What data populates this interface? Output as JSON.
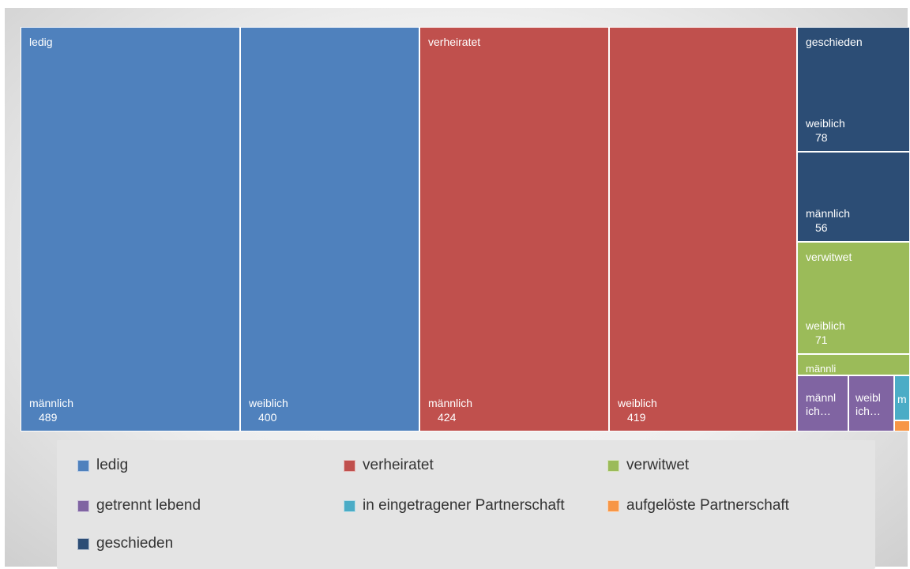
{
  "colors": {
    "ledig": "#4f81bd",
    "verheiratet": "#c0504d",
    "verwitwet": "#9bbb59",
    "getrennt_lebend": "#8064a2",
    "in_eingetragener_partnerschaft": "#4bacc6",
    "aufgeloeste_partnerschaft": "#f79646",
    "geschieden": "#2c4d75"
  },
  "chart_data": {
    "type": "treemap",
    "groups": [
      {
        "name": "ledig",
        "color": "#4f81bd",
        "children": [
          {
            "name": "männlich",
            "value": 489
          },
          {
            "name": "weiblich",
            "value": 400
          }
        ]
      },
      {
        "name": "verheiratet",
        "color": "#c0504d",
        "children": [
          {
            "name": "männlich",
            "value": 424
          },
          {
            "name": "weiblich",
            "value": 419
          }
        ]
      },
      {
        "name": "geschieden",
        "color": "#2c4d75",
        "children": [
          {
            "name": "weiblich",
            "value": 78
          },
          {
            "name": "männlich",
            "value": 56
          }
        ]
      },
      {
        "name": "verwitwet",
        "color": "#9bbb59",
        "children": [
          {
            "name": "weiblich",
            "value": 71
          },
          {
            "name": "männlich",
            "value": null
          }
        ]
      },
      {
        "name": "getrennt lebend",
        "color": "#8064a2",
        "children": [
          {
            "name": "männlich",
            "value": null
          },
          {
            "name": "weiblich",
            "value": null
          }
        ]
      },
      {
        "name": "in eingetragener Partnerschaft",
        "color": "#4bacc6",
        "children": [
          {
            "name": "männlich",
            "value": null
          }
        ]
      },
      {
        "name": "aufgelöste Partnerschaft",
        "color": "#f79646",
        "children": [
          {
            "name": "",
            "value": null
          }
        ]
      }
    ]
  },
  "tiles": {
    "ledig_m": {
      "group": "ledig",
      "sub": "männlich",
      "value": "489"
    },
    "ledig_w": {
      "sub": "weiblich",
      "value": "400"
    },
    "verh_m": {
      "group": "verheiratet",
      "sub": "männlich",
      "value": "424"
    },
    "verh_w": {
      "sub": "weiblich",
      "value": "419"
    },
    "gesch_w": {
      "group": "geschieden",
      "sub": "weiblich",
      "value": "78"
    },
    "gesch_m": {
      "sub": "männlich",
      "value": "56"
    },
    "verw_w": {
      "group": "verwitwet",
      "sub": "weiblich",
      "value": "71"
    },
    "verw_m": {
      "sub": "männli"
    },
    "getr_m": {
      "sub": "männl",
      "sub2": "ich…"
    },
    "getr_w": {
      "sub": "weibl",
      "sub2": "ich…"
    },
    "part_m": {
      "sub": "m"
    }
  },
  "legend": [
    {
      "label": "ledig",
      "color": "#4f81bd"
    },
    {
      "label": "verheiratet",
      "color": "#c0504d"
    },
    {
      "label": "verwitwet",
      "color": "#9bbb59"
    },
    {
      "label": "getrennt lebend",
      "color": "#8064a2"
    },
    {
      "label": "in eingetragener Partnerschaft",
      "color": "#4bacc6"
    },
    {
      "label": "aufgelöste Partnerschaft",
      "color": "#f79646"
    },
    {
      "label": "geschieden",
      "color": "#2c4d75"
    }
  ]
}
